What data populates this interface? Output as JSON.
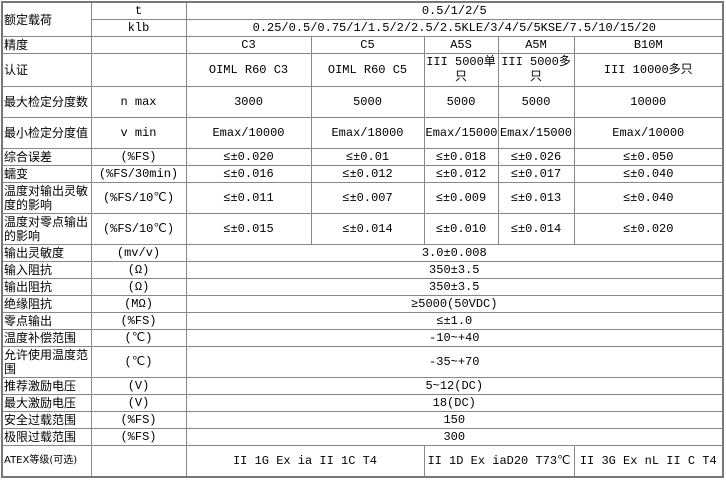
{
  "rated_load": {
    "label": "额定载荷",
    "t_unit": "t",
    "t_values": "0.5/1/2/5",
    "klb_unit": "klb",
    "klb_values": "0.25/0.5/0.75/1/1.5/2/2.5/2.5KLE/3/4/5/5KSE/7.5/10/15/20"
  },
  "accuracy": {
    "label": "精度",
    "unit": "",
    "values": [
      "C3",
      "C5",
      "A5S",
      "A5M",
      "B10M"
    ]
  },
  "rows_per_class": [
    {
      "label": "认证",
      "unit": "",
      "values": [
        "OIML R60 C3",
        "OIML R60 C5",
        "III 5000单只",
        "III 5000多只",
        "III 10000多只"
      ],
      "tall": true
    },
    {
      "label": "最大检定分度数",
      "unit": "n max",
      "values": [
        "3000",
        "5000",
        "5000",
        "5000",
        "10000"
      ],
      "tall": true
    },
    {
      "label": "最小检定分度值",
      "unit": "v min",
      "values": [
        "Emax/10000",
        "Emax/18000",
        "Emax/15000",
        "Emax/15000",
        "Emax/10000"
      ],
      "tall": true
    },
    {
      "label": "综合误差",
      "unit": "(%FS)",
      "values": [
        "≤±0.020",
        "≤±0.01",
        "≤±0.018",
        "≤±0.026",
        "≤±0.050"
      ],
      "tall": false
    },
    {
      "label": "蠕变",
      "unit": "(%FS/30min)",
      "values": [
        "≤±0.016",
        "≤±0.012",
        "≤±0.012",
        "≤±0.017",
        "≤±0.040"
      ],
      "tall": false
    },
    {
      "label": "温度对输出灵敏度的影响",
      "unit": "(%FS/10℃)",
      "values": [
        "≤±0.011",
        "≤±0.007",
        "≤±0.009",
        "≤±0.013",
        "≤±0.040"
      ],
      "tall": true
    },
    {
      "label": "温度对零点输出的影响",
      "unit": "(%FS/10℃)",
      "values": [
        "≤±0.015",
        "≤±0.014",
        "≤±0.010",
        "≤±0.014",
        "≤±0.020"
      ],
      "tall": true
    }
  ],
  "rows_common": [
    {
      "label": "输出灵敏度",
      "unit": "(mv/v)",
      "value": "3.0±0.008",
      "tall": false
    },
    {
      "label": "输入阻抗",
      "unit": "(Ω)",
      "value": "350±3.5",
      "tall": false
    },
    {
      "label": "输出阻抗",
      "unit": "(Ω)",
      "value": "350±3.5",
      "tall": false
    },
    {
      "label": "绝缘阻抗",
      "unit": "(MΩ)",
      "value": "≥5000(50VDC)",
      "tall": false
    },
    {
      "label": "零点输出",
      "unit": "(%FS)",
      "value": "≤±1.0",
      "tall": false
    },
    {
      "label": "温度补偿范围",
      "unit": "(℃)",
      "value": "-10~+40",
      "tall": false
    },
    {
      "label": "允许使用温度范围",
      "unit": "(℃)",
      "value": "-35~+70",
      "tall": true
    },
    {
      "label": "推荐激励电压",
      "unit": "(V)",
      "value": "5~12(DC)",
      "tall": false
    },
    {
      "label": "最大激励电压",
      "unit": "(V)",
      "value": "18(DC)",
      "tall": false
    },
    {
      "label": "安全过载范围",
      "unit": "(%FS)",
      "value": "150",
      "tall": false
    },
    {
      "label": "极限过载范围",
      "unit": "(%FS)",
      "value": "300",
      "tall": false
    }
  ],
  "atex": {
    "label": "ATEX等级(可选)",
    "unit": "",
    "values": [
      "II 1G Ex ia II 1C T4",
      "II 1D Ex iaD20 T73℃",
      "II 3G Ex nL II C T4"
    ]
  }
}
